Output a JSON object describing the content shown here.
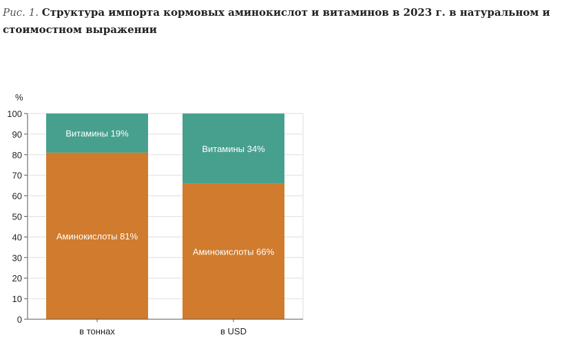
{
  "caption": {
    "prefix": "Рис. 1.",
    "title": "Структура импорта кормовых аминокислот и витаминов в 2023 г. в натуральном и стоимостном выражении"
  },
  "colors": {
    "amino": "#d07b2d",
    "vitamins": "#47a08e",
    "grid": "#dddddd",
    "axis": "#555555"
  },
  "chart_data": {
    "type": "bar",
    "stacked": true,
    "ylabel": "%",
    "ylim": [
      0,
      100
    ],
    "yticks": [
      0,
      10,
      20,
      30,
      40,
      50,
      60,
      70,
      80,
      90,
      100
    ],
    "grid": true,
    "categories": [
      "в тоннах",
      "в USD"
    ],
    "series": [
      {
        "name": "Аминокислоты",
        "values": [
          81,
          66
        ],
        "labels": [
          "Аминокислоты 81%",
          "Аминокислоты 66%"
        ]
      },
      {
        "name": "Витамины",
        "values": [
          19,
          34
        ],
        "labels": [
          "Витамины 19%",
          "Витамины 34%"
        ]
      }
    ]
  }
}
